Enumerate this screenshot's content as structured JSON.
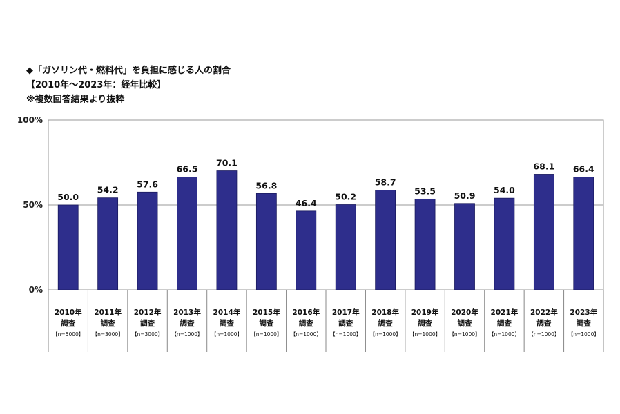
{
  "header": {
    "title_line1": "◆「ガソリン代・燃料代」を負担に感じる人の割合",
    "title_line2": "【2010年～2023年：経年比較】",
    "title_line3": "※複数回答結果より抜粋"
  },
  "chart_data": {
    "type": "bar",
    "title": "◆「ガソリン代・燃料代」を負担に感じる人の割合",
    "categories": [
      {
        "year": "2010年",
        "survey": "調査",
        "n": "【n=5000】"
      },
      {
        "year": "2011年",
        "survey": "調査",
        "n": "【n=3000】"
      },
      {
        "year": "2012年",
        "survey": "調査",
        "n": "【n=3000】"
      },
      {
        "year": "2013年",
        "survey": "調査",
        "n": "【n=1000】"
      },
      {
        "year": "2014年",
        "survey": "調査",
        "n": "【n=1000】"
      },
      {
        "year": "2015年",
        "survey": "調査",
        "n": "【n=1000】"
      },
      {
        "year": "2016年",
        "survey": "調査",
        "n": "【n=1000】"
      },
      {
        "year": "2017年",
        "survey": "調査",
        "n": "【n=1000】"
      },
      {
        "year": "2018年",
        "survey": "調査",
        "n": "【n=1000】"
      },
      {
        "year": "2019年",
        "survey": "調査",
        "n": "【n=1000】"
      },
      {
        "year": "2020年",
        "survey": "調査",
        "n": "【n=1000】"
      },
      {
        "year": "2021年",
        "survey": "調査",
        "n": "【n=1000】"
      },
      {
        "year": "2022年",
        "survey": "調査",
        "n": "【n=1000】"
      },
      {
        "year": "2023年",
        "survey": "調査",
        "n": "【n=1000】"
      }
    ],
    "values": [
      50.0,
      54.2,
      57.6,
      66.5,
      70.1,
      56.8,
      46.4,
      50.2,
      58.7,
      53.5,
      50.9,
      54.0,
      68.1,
      66.4
    ],
    "value_labels": [
      "50.0",
      "54.2",
      "57.6",
      "66.5",
      "70.1",
      "56.8",
      "46.4",
      "50.2",
      "58.7",
      "53.5",
      "50.9",
      "54.0",
      "68.1",
      "66.4"
    ],
    "ylim": [
      0,
      100
    ],
    "yticks": [
      0,
      50,
      100
    ],
    "ytick_labels": [
      "0%",
      "50%",
      "100%"
    ],
    "grid": true,
    "legend": "none",
    "bar_color": "#2e2e8c",
    "bar_edge_color": "#1a1a5e"
  }
}
